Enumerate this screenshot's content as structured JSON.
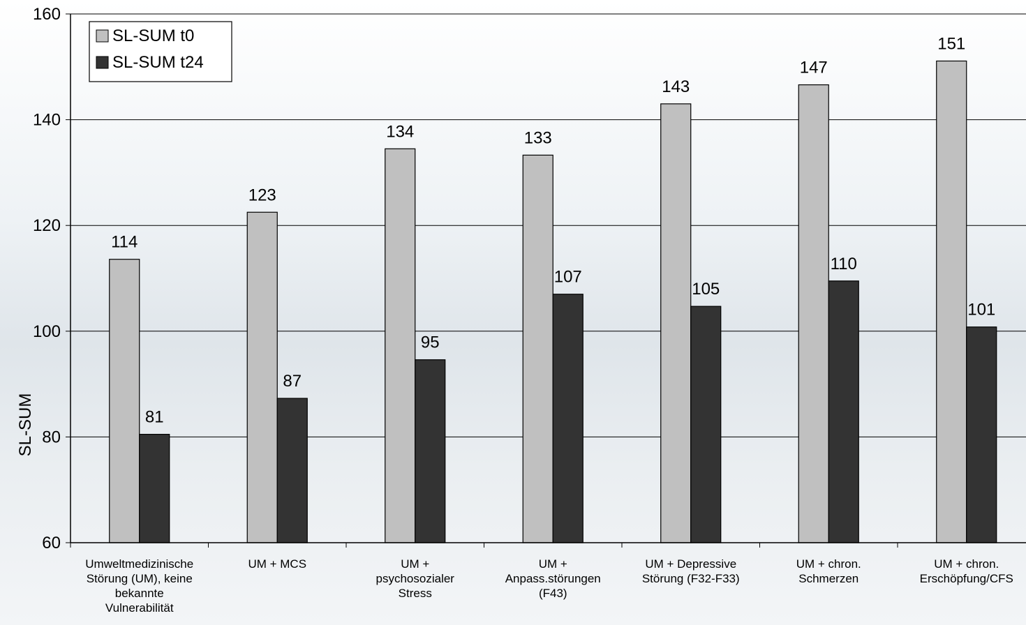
{
  "chart_data": {
    "type": "bar",
    "ylabel": "SL-SUM",
    "ylim": [
      60,
      160
    ],
    "yticks": [
      60,
      80,
      100,
      120,
      140,
      160
    ],
    "grid": true,
    "legend_position": "top-left",
    "categories": [
      [
        "Umweltmedizinische",
        "Störung (UM), keine",
        "bekannte",
        "Vulnerabilität"
      ],
      [
        "UM + MCS"
      ],
      [
        "UM +",
        "psychosozialer",
        "Stress"
      ],
      [
        "UM +",
        "Anpass.störungen",
        "(F43)"
      ],
      [
        "UM + Depressive",
        "Störung (F32-F33)"
      ],
      [
        "UM + chron.",
        "Schmerzen"
      ],
      [
        "UM + chron.",
        "Erschöpfung/CFS"
      ]
    ],
    "series": [
      {
        "name": "SL-SUM t0",
        "color": "#c0c0c0",
        "values": [
          113.6,
          122.5,
          134.5,
          133.3,
          143.0,
          146.6,
          151.1
        ],
        "labels": [
          "114",
          "123",
          "134",
          "133",
          "143",
          "147",
          "151"
        ]
      },
      {
        "name": "SL-SUM t24",
        "color": "#333333",
        "values": [
          80.5,
          87.3,
          94.6,
          107.0,
          104.7,
          109.5,
          100.8
        ],
        "labels": [
          "81",
          "87",
          "95",
          "107",
          "105",
          "110",
          "101"
        ]
      }
    ]
  }
}
